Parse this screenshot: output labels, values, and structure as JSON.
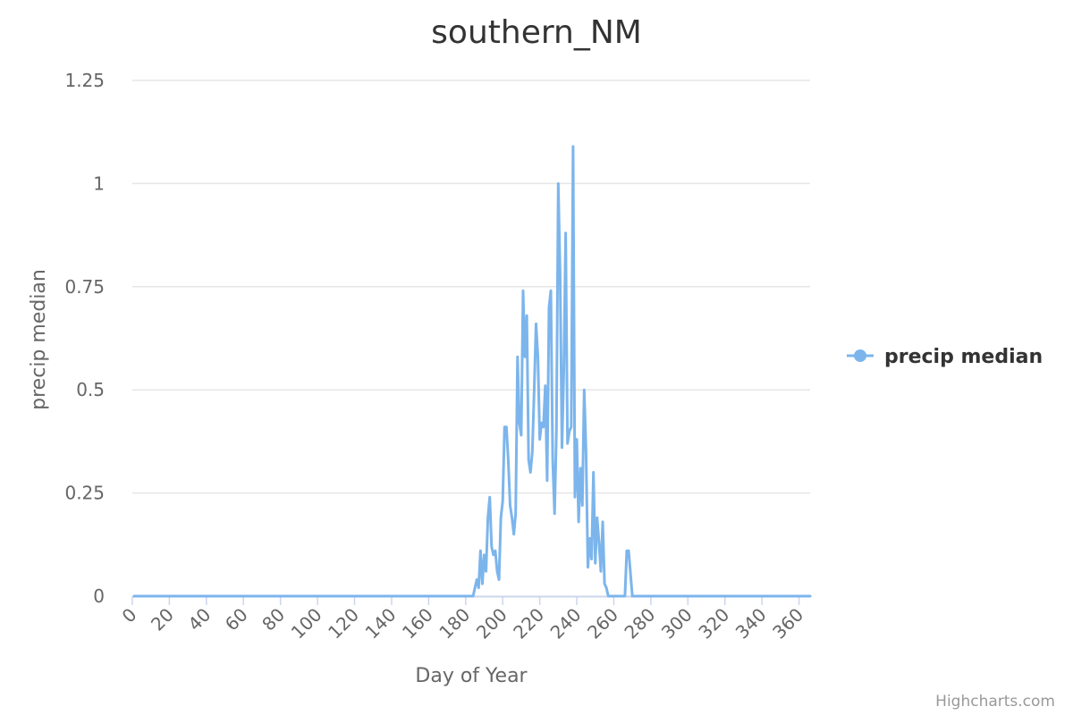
{
  "colors": {
    "series": "#7cb5ec",
    "grid": "#e6e6e6",
    "axis_line": "#ccd6eb",
    "title": "#333333",
    "label": "#666666",
    "credits": "#999999"
  },
  "credits": "Highcharts.com",
  "chart_data": {
    "type": "line",
    "title": "southern_NM",
    "xlabel": "Day of Year",
    "ylabel": "precip median",
    "xlim": [
      0,
      366
    ],
    "ylim": [
      0,
      1.25
    ],
    "x_ticks": [
      0,
      20,
      40,
      60,
      80,
      100,
      120,
      140,
      160,
      180,
      200,
      220,
      240,
      260,
      280,
      300,
      320,
      340,
      360
    ],
    "y_ticks": [
      0,
      0.25,
      0.5,
      0.75,
      1,
      1.25
    ],
    "y_tick_labels": [
      "0",
      "0.25",
      "0.5",
      "0.75",
      "1",
      "1.25"
    ],
    "grid": true,
    "legend_position": "right",
    "series": [
      {
        "name": "precip median",
        "color": "#7cb5ec",
        "points": [
          [
            1,
            0
          ],
          [
            184,
            0
          ],
          [
            186,
            0.04
          ],
          [
            187,
            0.02
          ],
          [
            188,
            0.11
          ],
          [
            189,
            0.03
          ],
          [
            190,
            0.1
          ],
          [
            191,
            0.06
          ],
          [
            192,
            0.19
          ],
          [
            193,
            0.24
          ],
          [
            194,
            0.12
          ],
          [
            195,
            0.1
          ],
          [
            196,
            0.11
          ],
          [
            197,
            0.06
          ],
          [
            198,
            0.04
          ],
          [
            199,
            0.19
          ],
          [
            200,
            0.23
          ],
          [
            201,
            0.41
          ],
          [
            202,
            0.41
          ],
          [
            203,
            0.33
          ],
          [
            204,
            0.22
          ],
          [
            205,
            0.19
          ],
          [
            206,
            0.15
          ],
          [
            207,
            0.2
          ],
          [
            208,
            0.58
          ],
          [
            209,
            0.42
          ],
          [
            210,
            0.39
          ],
          [
            211,
            0.74
          ],
          [
            212,
            0.58
          ],
          [
            213,
            0.68
          ],
          [
            214,
            0.33
          ],
          [
            215,
            0.3
          ],
          [
            216,
            0.35
          ],
          [
            217,
            0.5
          ],
          [
            218,
            0.66
          ],
          [
            219,
            0.58
          ],
          [
            220,
            0.38
          ],
          [
            221,
            0.42
          ],
          [
            222,
            0.41
          ],
          [
            223,
            0.51
          ],
          [
            224,
            0.28
          ],
          [
            225,
            0.7
          ],
          [
            226,
            0.74
          ],
          [
            227,
            0.33
          ],
          [
            228,
            0.2
          ],
          [
            229,
            0.4
          ],
          [
            230,
            1.0
          ],
          [
            231,
            0.78
          ],
          [
            232,
            0.36
          ],
          [
            233,
            0.55
          ],
          [
            234,
            0.88
          ],
          [
            235,
            0.37
          ],
          [
            236,
            0.4
          ],
          [
            237,
            0.41
          ],
          [
            238,
            1.09
          ],
          [
            239,
            0.24
          ],
          [
            240,
            0.38
          ],
          [
            241,
            0.18
          ],
          [
            242,
            0.31
          ],
          [
            243,
            0.22
          ],
          [
            244,
            0.5
          ],
          [
            245,
            0.35
          ],
          [
            246,
            0.07
          ],
          [
            247,
            0.14
          ],
          [
            248,
            0.09
          ],
          [
            249,
            0.3
          ],
          [
            250,
            0.08
          ],
          [
            251,
            0.19
          ],
          [
            252,
            0.13
          ],
          [
            253,
            0.06
          ],
          [
            254,
            0.18
          ],
          [
            255,
            0.03
          ],
          [
            256,
            0.02
          ],
          [
            257,
            0
          ],
          [
            266,
            0
          ],
          [
            267,
            0.11
          ],
          [
            268,
            0.11
          ],
          [
            270,
            0
          ],
          [
            366,
            0
          ]
        ]
      }
    ]
  }
}
